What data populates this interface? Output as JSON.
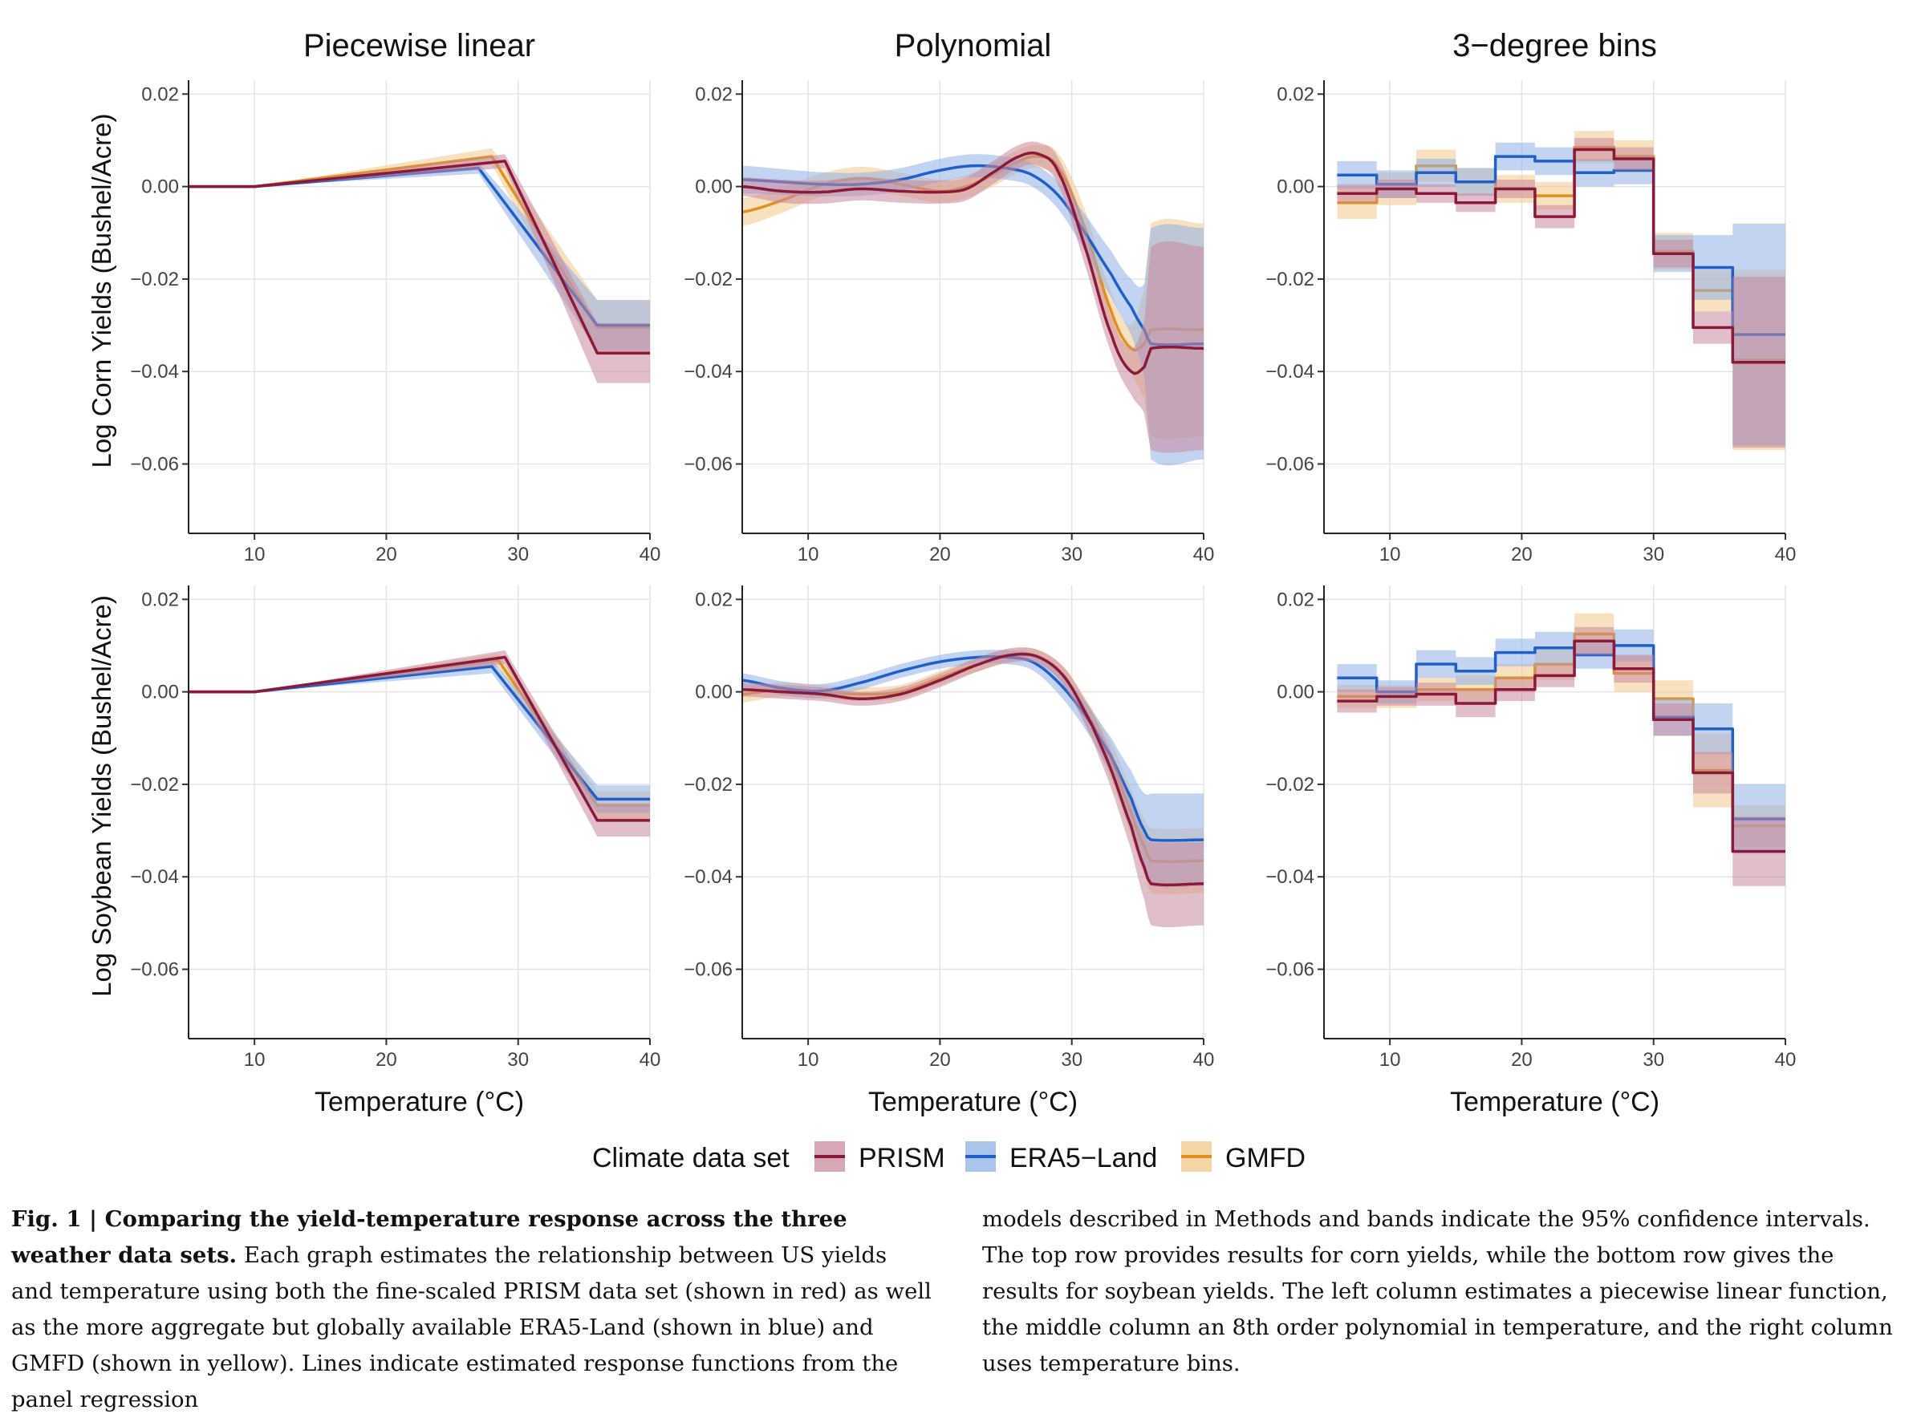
{
  "chart_data": {
    "type": "line",
    "column_titles": [
      "Piecewise linear",
      "Polynomial",
      "3−degree bins"
    ],
    "row_ylabels": [
      "Log Corn Yields (Bushel/Acre)",
      "Log Soybean Yields (Bushel/Acre)"
    ],
    "xlabel": "Temperature (°C)",
    "xlim": [
      5,
      40
    ],
    "ylim": [
      -0.075,
      0.023
    ],
    "x_ticks": [
      10,
      20,
      30,
      40
    ],
    "x_tick_labels": [
      "10",
      "20",
      "30",
      "40"
    ],
    "y_ticks": [
      0.02,
      0.0,
      -0.02,
      -0.04,
      -0.06
    ],
    "y_tick_labels": [
      "0.02",
      "0.00",
      "−0.02",
      "−0.04",
      "−0.06"
    ],
    "legend": {
      "title": "Climate data set",
      "placement": "bottom",
      "entries": [
        "PRISM",
        "ERA5−Land",
        "GMFD"
      ]
    },
    "series_colors": {
      "PRISM": {
        "line": "#8b1a3a",
        "band": "#c98a9e"
      },
      "ERA5−Land": {
        "line": "#1f5fc9",
        "band": "#8fb0e6"
      },
      "GMFD": {
        "line": "#e0901e",
        "band": "#f2c98a"
      }
    },
    "panels": [
      {
        "row": 0,
        "col": 0,
        "type": "piecewise",
        "series": [
          {
            "key": "PRISM",
            "x": [
              5,
              10,
              29,
              36,
              40
            ],
            "y": [
              0,
              0,
              0.0055,
              -0.036,
              -0.036
            ],
            "halfwidth": [
              0,
              0,
              0.0015,
              0.0065,
              0.0065
            ]
          },
          {
            "key": "ERA5−Land",
            "x": [
              5,
              10,
              27,
              36,
              40
            ],
            "y": [
              0,
              0,
              0.004,
              -0.03,
              -0.03
            ],
            "halfwidth": [
              0,
              0,
              0.0012,
              0.0055,
              0.0055
            ]
          },
          {
            "key": "GMFD",
            "x": [
              5,
              10,
              28,
              36,
              40
            ],
            "y": [
              0,
              0,
              0.0065,
              -0.0305,
              -0.0305
            ],
            "halfwidth": [
              0,
              0,
              0.0018,
              0.006,
              0.006
            ]
          }
        ]
      },
      {
        "row": 0,
        "col": 1,
        "type": "smooth",
        "series": [
          {
            "key": "PRISM",
            "x": [
              5,
              8,
              11,
              14,
              17,
              20,
              22,
              24,
              26,
              27.5,
              29,
              31,
              33,
              34.5,
              35.5,
              36,
              40
            ],
            "y": [
              0,
              -0.001,
              -0.0012,
              -0.0005,
              -0.001,
              -0.0012,
              -0.0005,
              0.003,
              0.0065,
              0.007,
              0.003,
              -0.013,
              -0.032,
              -0.04,
              -0.039,
              -0.035,
              -0.035
            ],
            "halfwidth": [
              0.002,
              0.0025,
              0.0025,
              0.0025,
              0.0025,
              0.0025,
              0.0025,
              0.0025,
              0.0025,
              0.0025,
              0.003,
              0.004,
              0.004,
              0.005,
              0.01,
              0.022,
              0.022
            ]
          },
          {
            "key": "ERA5−Land",
            "x": [
              5,
              8,
              11,
              14,
              17,
              20,
              22.5,
              25,
              27,
              29,
              31,
              33,
              34.5,
              35.5,
              36,
              40
            ],
            "y": [
              0.0015,
              0.001,
              0.0005,
              0.0005,
              0.0015,
              0.0035,
              0.0045,
              0.004,
              0.0025,
              -0.002,
              -0.01,
              -0.019,
              -0.026,
              -0.031,
              -0.034,
              -0.034
            ],
            "halfwidth": [
              0.003,
              0.0028,
              0.0026,
              0.0025,
              0.0025,
              0.0025,
              0.0025,
              0.0025,
              0.0025,
              0.003,
              0.004,
              0.005,
              0.006,
              0.01,
              0.025,
              0.025
            ]
          },
          {
            "key": "GMFD",
            "x": [
              5,
              8,
              11,
              14,
              17,
              20,
              22,
              24,
              26,
              27.5,
              29,
              31,
              33,
              34.5,
              35.5,
              36,
              40
            ],
            "y": [
              -0.0055,
              -0.003,
              0.0003,
              0.0018,
              0.0005,
              -0.001,
              0.0,
              0.0025,
              0.0055,
              0.0065,
              0.004,
              -0.009,
              -0.027,
              -0.035,
              -0.034,
              -0.031,
              -0.031
            ],
            "halfwidth": [
              0.003,
              0.0027,
              0.0025,
              0.0025,
              0.0025,
              0.0025,
              0.0025,
              0.0025,
              0.0025,
              0.0025,
              0.003,
              0.004,
              0.004,
              0.005,
              0.012,
              0.023,
              0.023
            ]
          }
        ]
      },
      {
        "row": 0,
        "col": 2,
        "type": "step",
        "edges": [
          6,
          9,
          12,
          15,
          18,
          21,
          24,
          27,
          30,
          33,
          36,
          40
        ],
        "series": [
          {
            "key": "PRISM",
            "values": [
              -0.0015,
              -0.0005,
              -0.0015,
              -0.0035,
              -0.0005,
              -0.0065,
              0.008,
              0.006,
              -0.0145,
              -0.0305,
              -0.038
            ],
            "halfwidth": [
              0.002,
              0.002,
              0.002,
              0.002,
              0.002,
              0.0025,
              0.0025,
              0.0025,
              0.003,
              0.0035,
              0.0185
            ]
          },
          {
            "key": "ERA5−Land",
            "values": [
              0.0025,
              0.0005,
              0.003,
              0.001,
              0.0065,
              0.0055,
              0.003,
              0.0035,
              -0.0145,
              -0.0175,
              -0.032
            ],
            "halfwidth": [
              0.003,
              0.003,
              0.003,
              0.003,
              0.003,
              0.003,
              0.003,
              0.003,
              0.004,
              0.007,
              0.024
            ]
          },
          {
            "key": "GMFD",
            "values": [
              -0.0035,
              -0.0005,
              0.0045,
              0.001,
              -0.0005,
              -0.002,
              0.0085,
              0.0065,
              -0.014,
              -0.0225,
              -0.0375
            ],
            "halfwidth": [
              0.0035,
              0.0035,
              0.0035,
              0.003,
              0.003,
              0.003,
              0.0035,
              0.0035,
              0.004,
              0.0045,
              0.0195
            ]
          }
        ]
      },
      {
        "row": 1,
        "col": 0,
        "type": "piecewise",
        "series": [
          {
            "key": "PRISM",
            "x": [
              5,
              10,
              29,
              36,
              40
            ],
            "y": [
              0,
              0,
              0.0075,
              -0.0278,
              -0.0278
            ],
            "halfwidth": [
              0,
              0,
              0.0015,
              0.0035,
              0.0035
            ]
          },
          {
            "key": "ERA5−Land",
            "x": [
              5,
              10,
              28,
              36,
              40
            ],
            "y": [
              0,
              0,
              0.0055,
              -0.0232,
              -0.0232
            ],
            "halfwidth": [
              0,
              0,
              0.0015,
              0.003,
              0.003
            ]
          },
          {
            "key": "GMFD",
            "x": [
              5,
              10,
              28.5,
              36,
              40
            ],
            "y": [
              0,
              0,
              0.0068,
              -0.0245,
              -0.0245
            ],
            "halfwidth": [
              0,
              0,
              0.0015,
              0.003,
              0.003
            ]
          }
        ]
      },
      {
        "row": 1,
        "col": 1,
        "type": "smooth",
        "series": [
          {
            "key": "PRISM",
            "x": [
              5,
              8,
              11,
              14,
              17,
              20,
              23,
              25.5,
              27.5,
              29.5,
              31.5,
              33,
              34.5,
              35.5,
              36,
              40
            ],
            "y": [
              0.0005,
              0.0,
              -0.0005,
              -0.0015,
              -0.0005,
              0.0025,
              0.006,
              0.008,
              0.0075,
              0.003,
              -0.007,
              -0.017,
              -0.029,
              -0.038,
              -0.0415,
              -0.0415
            ],
            "halfwidth": [
              0.0015,
              0.0015,
              0.0015,
              0.0015,
              0.0015,
              0.0015,
              0.0015,
              0.0015,
              0.0015,
              0.002,
              0.003,
              0.004,
              0.005,
              0.007,
              0.009,
              0.009
            ]
          },
          {
            "key": "ERA5−Land",
            "x": [
              5,
              8,
              11,
              14,
              17,
              20,
              23,
              25,
              27,
              29,
              31,
              33,
              34.5,
              35.5,
              36,
              40
            ],
            "y": [
              0.0025,
              0.0008,
              0.0002,
              0.002,
              0.0045,
              0.0065,
              0.0075,
              0.0075,
              0.0065,
              0.002,
              -0.005,
              -0.014,
              -0.023,
              -0.03,
              -0.032,
              -0.032
            ],
            "halfwidth": [
              0.0015,
              0.0015,
              0.0015,
              0.0015,
              0.0015,
              0.0015,
              0.0015,
              0.0015,
              0.0018,
              0.0025,
              0.003,
              0.004,
              0.006,
              0.008,
              0.01,
              0.01
            ]
          },
          {
            "key": "GMFD",
            "x": [
              5,
              8,
              11,
              14,
              17,
              20,
              23,
              25.5,
              27.5,
              29.5,
              31.5,
              33,
              34.5,
              35.5,
              36,
              40
            ],
            "y": [
              -0.0005,
              0.0005,
              0.0,
              -0.0005,
              0.0,
              0.003,
              0.006,
              0.0078,
              0.0075,
              0.003,
              -0.0065,
              -0.015,
              -0.026,
              -0.0335,
              -0.0365,
              -0.0365
            ],
            "halfwidth": [
              0.0018,
              0.0015,
              0.0015,
              0.0015,
              0.0015,
              0.0015,
              0.0015,
              0.0015,
              0.0015,
              0.002,
              0.003,
              0.004,
              0.005,
              0.006,
              0.007,
              0.007
            ]
          }
        ]
      },
      {
        "row": 1,
        "col": 2,
        "type": "step",
        "edges": [
          6,
          9,
          12,
          15,
          18,
          21,
          24,
          27,
          30,
          33,
          36,
          40
        ],
        "series": [
          {
            "key": "PRISM",
            "values": [
              -0.002,
              -0.001,
              -0.0005,
              -0.0025,
              0.0005,
              0.0035,
              0.011,
              0.005,
              -0.006,
              -0.0175,
              -0.0345
            ],
            "halfwidth": [
              0.0025,
              0.002,
              0.0025,
              0.003,
              0.0025,
              0.0025,
              0.003,
              0.003,
              0.0035,
              0.0045,
              0.0075
            ]
          },
          {
            "key": "ERA5−Land",
            "values": [
              0.003,
              0.0,
              0.006,
              0.0045,
              0.0085,
              0.0095,
              0.008,
              0.01,
              -0.0055,
              -0.008,
              -0.0275
            ],
            "halfwidth": [
              0.003,
              0.0025,
              0.003,
              0.003,
              0.003,
              0.0035,
              0.003,
              0.0035,
              0.004,
              0.0055,
              0.0075
            ]
          },
          {
            "key": "GMFD",
            "values": [
              -0.001,
              -0.001,
              0.0005,
              0.0005,
              0.003,
              0.006,
              0.0125,
              0.004,
              -0.0015,
              -0.017,
              -0.029
            ],
            "halfwidth": [
              0.0025,
              0.0025,
              0.0025,
              0.003,
              0.003,
              0.0035,
              0.0045,
              0.004,
              0.004,
              0.008,
              0.0045
            ]
          }
        ]
      }
    ]
  },
  "caption": {
    "label": "Fig. 1 | Comparing the yield-temperature response across the three weather data sets.",
    "left_text": " Each graph estimates the relationship between US yields and temperature using both the fine-scaled PRISM data set (shown in red) as well as the more aggregate but globally available ERA5-Land (shown in blue) and GMFD (shown in yellow). Lines indicate estimated response functions from the panel regression",
    "right_text": "models described in Methods and bands indicate the 95% confidence intervals. The top row provides results for corn yields, while the bottom row gives the results for soybean yields. The left column estimates a piecewise linear function, the middle column an 8th order polynomial in temperature, and the right column uses temperature bins."
  }
}
